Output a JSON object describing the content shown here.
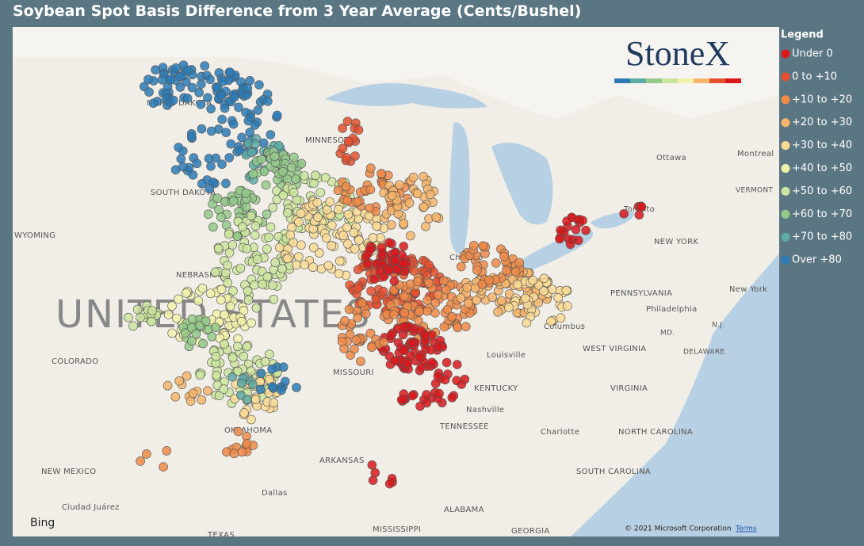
{
  "title": "Soybean Spot Basis Difference from 3 Year Average (Cents/Bushel)",
  "logo": "StoneX",
  "legend": {
    "title": "Legend",
    "items": [
      {
        "name": "Under 0",
        "color": "#d7191c"
      },
      {
        "name": "0 to +10",
        "color": "#e4502e"
      },
      {
        "name": "+10 to +20",
        "color": "#ef8a48"
      },
      {
        "name": "+20 to +30",
        "color": "#f6b56b"
      },
      {
        "name": "+30 to +40",
        "color": "#fadb95"
      },
      {
        "name": "+40 to +50",
        "color": "#f2f2aa"
      },
      {
        "name": "+50 to +60",
        "color": "#cce59e"
      },
      {
        "name": "+60 to +70",
        "color": "#94c98a"
      },
      {
        "name": "+70 to +80",
        "color": "#5eaaa4"
      },
      {
        "name": "Over +80",
        "color": "#2c7bb6"
      }
    ]
  },
  "map_labels": [
    "UNITED STATES",
    "NORTH DAKOTA",
    "MINNESOTA",
    "SOUTH DAKOTA",
    "WYOMING",
    "NEBRASKA",
    "COLORADO",
    "MISSOURI",
    "OKLAHOMA",
    "NEW MEXICO",
    "ARKANSAS",
    "TENNESSEE",
    "KENTUCKY",
    "WEST VIRGINIA",
    "VIRGINIA",
    "NORTH CAROLINA",
    "SOUTH CAROLINA",
    "MISSISSIPPI",
    "ALABAMA",
    "GEORGIA",
    "TEXAS",
    "PENNSYLVANIA",
    "NEW YORK",
    "VERMONT",
    "DELAWARE",
    "MD.",
    "N.J.",
    "Ottawa",
    "Montreal",
    "Toronto",
    "Chicago",
    "Columbus",
    "Louisville",
    "Nashville",
    "Charlotte",
    "Philadelphia",
    "New York",
    "Dallas",
    "Ciudad Juárez"
  ],
  "attribution": {
    "provider": "Bing",
    "copyright": "© 2021 Microsoft Corporation",
    "terms": "Terms"
  }
}
